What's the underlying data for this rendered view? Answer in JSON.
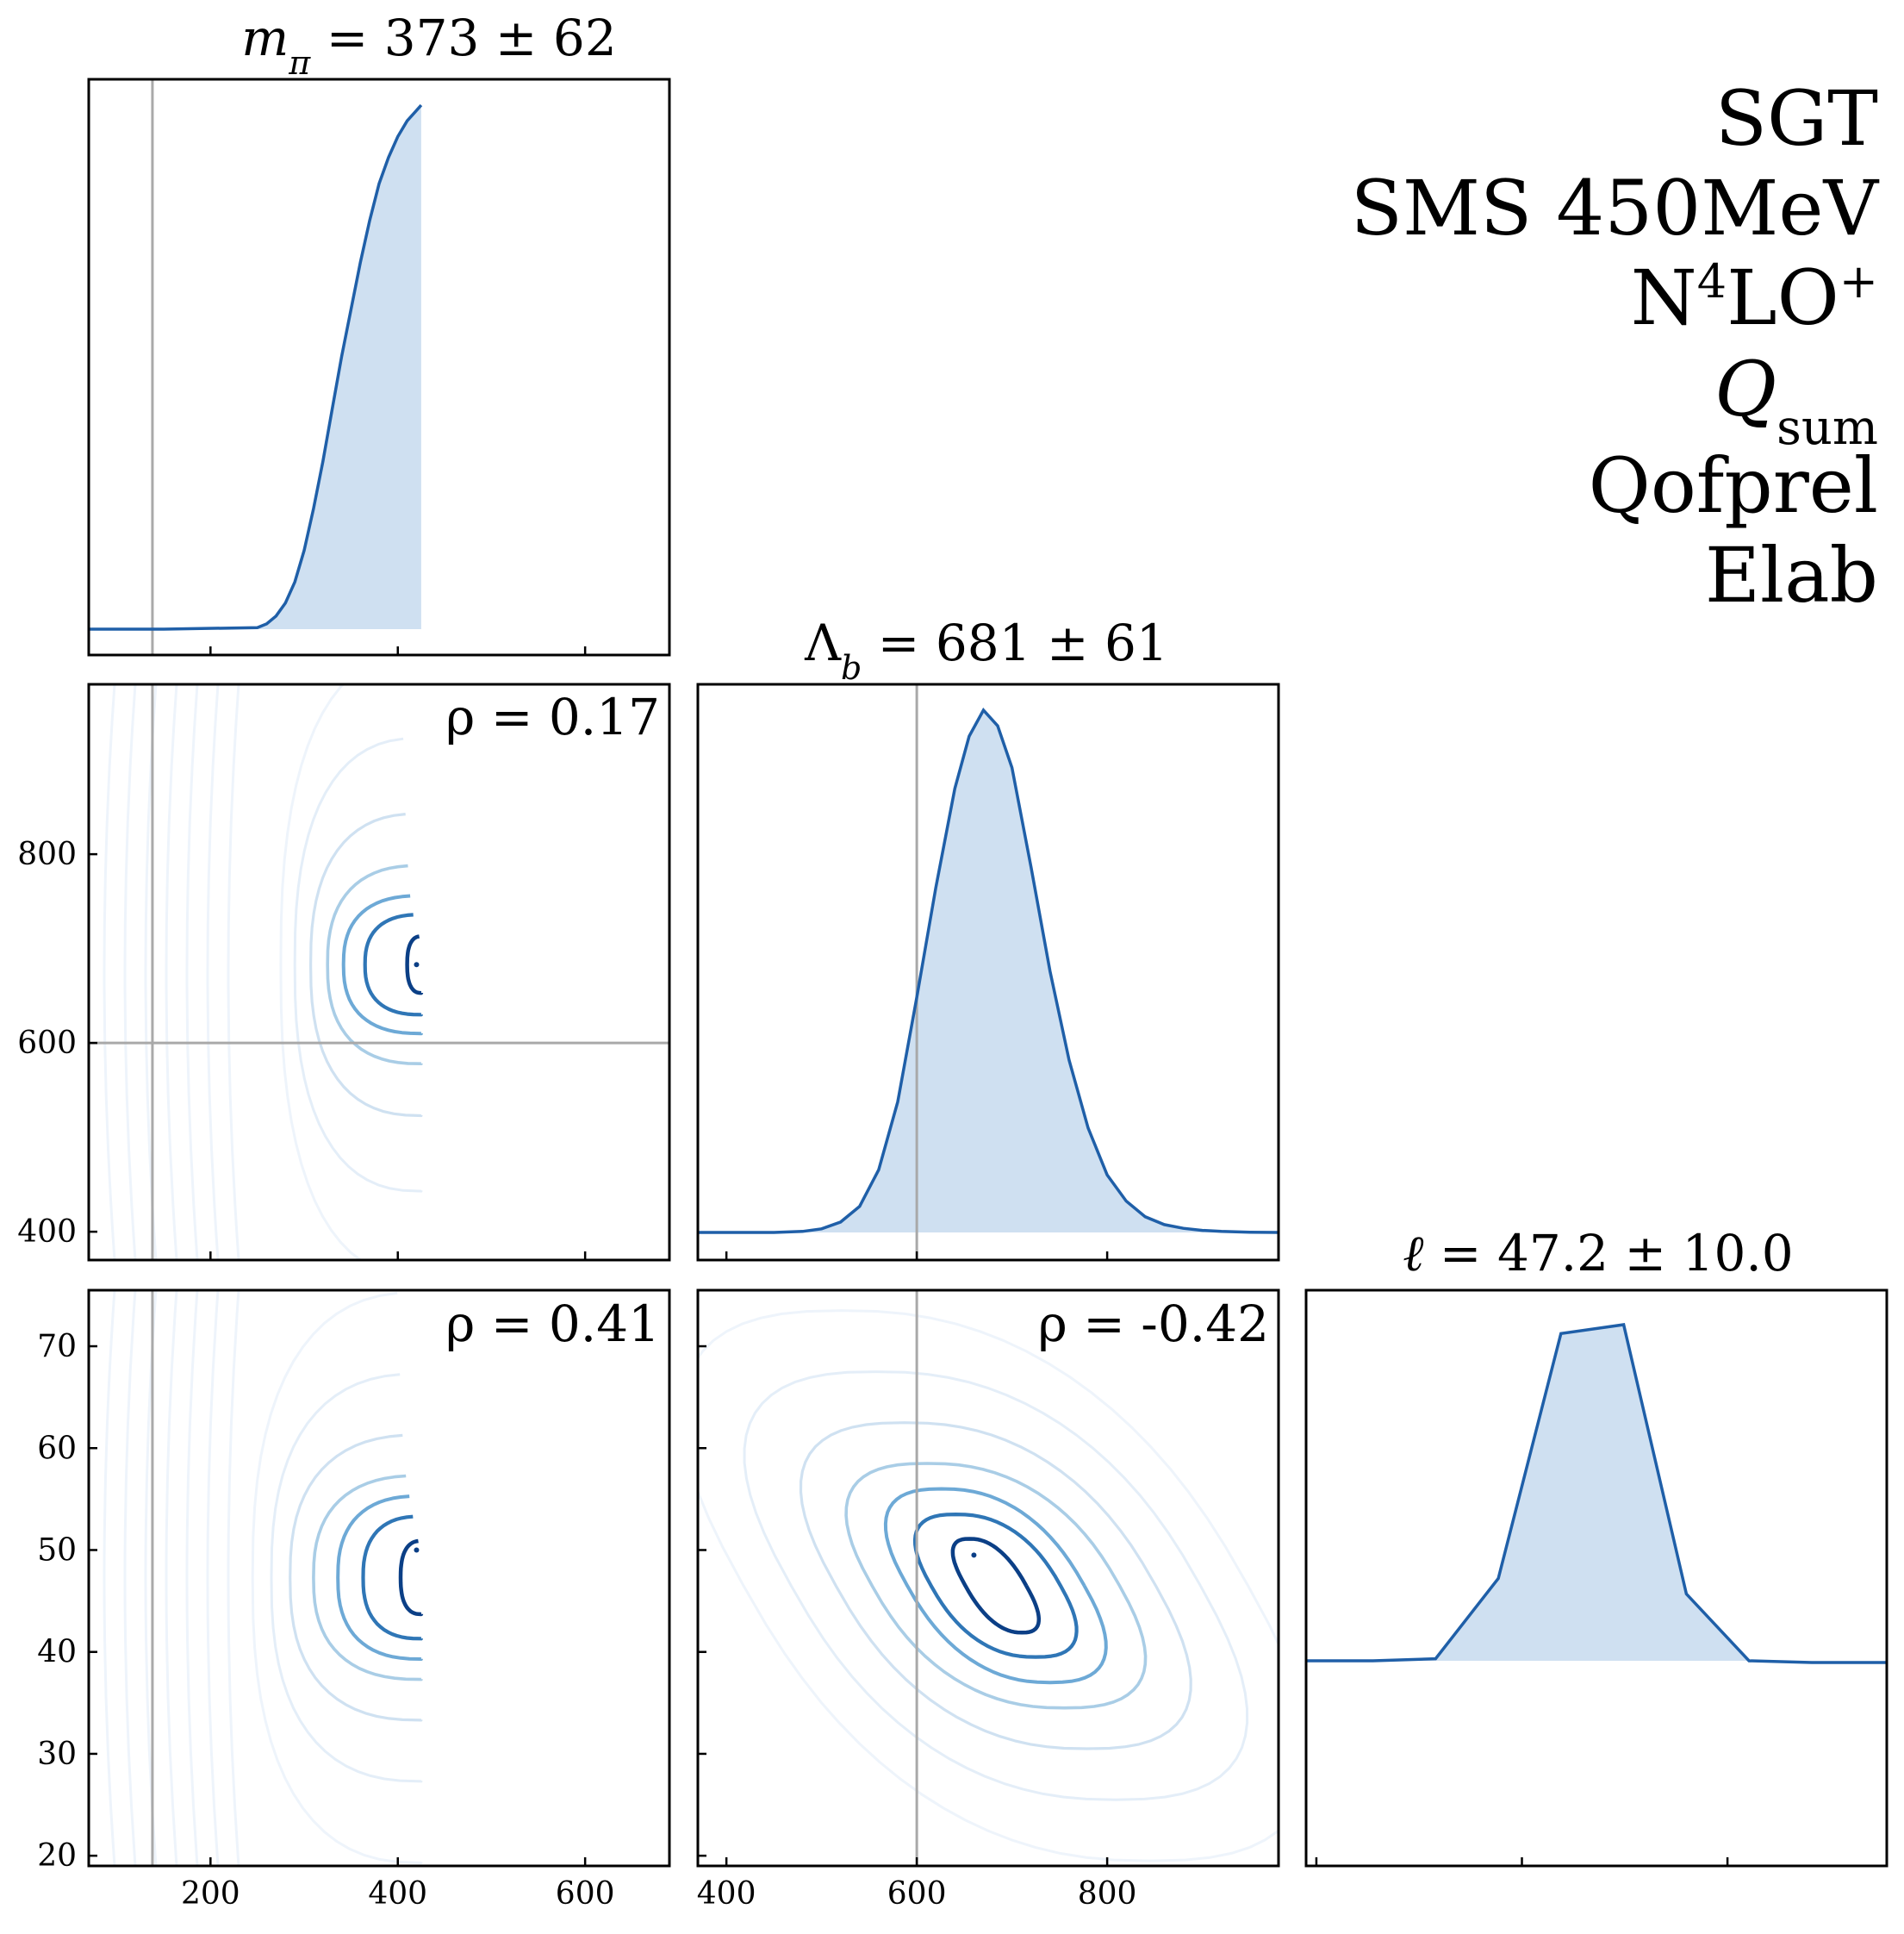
{
  "info_block": {
    "lines": [
      "SGT",
      "SMS 450MeV",
      "N",
      "Q",
      "Qofprel",
      "Elab"
    ],
    "n4lo_sup": "4",
    "n4lo_rest": "LO",
    "n4lo_plus": "+",
    "qsum_sub": "sum"
  },
  "colors": {
    "line": "#1f5fa8",
    "fill": "#cfe0f1",
    "truth": "#a9a9a9",
    "contours": [
      "#0b3f86",
      "#2f76b6",
      "#6da9d6",
      "#a9cde6",
      "#cfe1f1",
      "#e4eef8",
      "#eef4fb"
    ]
  },
  "chart_data": [
    {
      "type": "area",
      "panel": "m_pi marginal",
      "title": "m_π = 373 ± 62",
      "title_var": "m",
      "title_sub": "π",
      "title_rest": " = 373 ± 62",
      "xlim": [
        70,
        690
      ],
      "xticks": [
        200,
        400,
        600
      ],
      "truth_x": 138,
      "x": [
        70,
        150,
        250,
        260,
        270,
        280,
        290,
        300,
        310,
        320,
        330,
        340,
        350,
        360,
        370,
        380,
        390,
        400,
        410,
        420,
        425
      ],
      "y": [
        0,
        0,
        0.003,
        0.01,
        0.025,
        0.05,
        0.09,
        0.15,
        0.23,
        0.32,
        0.42,
        0.52,
        0.61,
        0.7,
        0.78,
        0.85,
        0.9,
        0.94,
        0.97,
        0.99,
        1.0
      ]
    },
    {
      "type": "area",
      "panel": "Lambda_b marginal",
      "title": "Λ_b = 681 ± 61",
      "title_var": "Λ",
      "title_sub": "b",
      "title_rest": " = 681 ± 61",
      "xlim": [
        370,
        980
      ],
      "xticks": [
        400,
        600,
        800
      ],
      "truth_x": 600,
      "x": [
        370,
        450,
        480,
        500,
        520,
        540,
        560,
        580,
        600,
        620,
        640,
        655,
        670,
        685,
        700,
        720,
        740,
        760,
        780,
        800,
        820,
        840,
        860,
        880,
        900,
        920,
        950,
        980
      ],
      "y": [
        0,
        0,
        0.002,
        0.007,
        0.02,
        0.05,
        0.12,
        0.25,
        0.45,
        0.66,
        0.85,
        0.95,
        1.0,
        0.97,
        0.89,
        0.7,
        0.5,
        0.33,
        0.2,
        0.11,
        0.06,
        0.03,
        0.015,
        0.008,
        0.004,
        0.002,
        0.0005,
        0
      ]
    },
    {
      "type": "area",
      "panel": "ell marginal",
      "title": "ℓ = 47.2 ± 10.0",
      "title_var": "ℓ",
      "title_rest": " = 47.2 ± 10.0",
      "xlim": [
        19,
        75.5
      ],
      "xticks": [
        20,
        30,
        40,
        50,
        60,
        70
      ],
      "x": [
        19,
        25.5,
        31.6,
        37.7,
        43.8,
        49.9,
        56,
        62.1,
        68.2,
        74.3,
        75.5
      ],
      "y": [
        0,
        0,
        0.006,
        0.24,
        0.954,
        0.98,
        0.195,
        0.0,
        -0.005,
        -0.005,
        -0.005
      ]
    },
    {
      "type": "contour",
      "panel": "m_pi vs Lambda_b",
      "rho_label": "ρ = 0.17",
      "xlim": [
        70,
        690
      ],
      "ylim": [
        370,
        980
      ],
      "xticks": [
        200,
        400,
        600
      ],
      "yticks": [
        400,
        600,
        800
      ],
      "truth_x": 138,
      "truth_y": 600,
      "cutoff_x": 425,
      "center": [
        425,
        683
      ],
      "half_widths_x": [
        15,
        60,
        83,
        100,
        118,
        135,
        150
      ],
      "half_heights_y": [
        30,
        53,
        73,
        105,
        160,
        240,
        330
      ]
    },
    {
      "type": "contour",
      "panel": "m_pi vs ell",
      "rho_label": "ρ = 0.41",
      "xlim": [
        70,
        690
      ],
      "ylim": [
        19,
        75.5
      ],
      "xticks": [
        200,
        400,
        600
      ],
      "yticks": [
        20,
        30,
        40,
        50,
        60,
        70
      ],
      "truth_x": 138,
      "cutoff_x": 425,
      "center": [
        425,
        47.3
      ],
      "half_widths_x": [
        22,
        62,
        89,
        115,
        140,
        160,
        180
      ],
      "half_heights_y": [
        3.6,
        6,
        8,
        10,
        14,
        20,
        28
      ]
    },
    {
      "type": "contour",
      "panel": "Lambda_b vs ell",
      "rho_label": "ρ = -0.42",
      "xlim": [
        370,
        980
      ],
      "ylim": [
        19,
        75.5
      ],
      "xticks": [
        400,
        600,
        800
      ],
      "yticks": [
        20,
        30,
        40,
        50,
        60,
        70
      ],
      "truth_x": 600,
      "center": [
        683,
        46.5
      ],
      "half_widths_x": [
        32,
        68,
        93,
        130,
        168,
        215,
        265
      ],
      "half_heights_y": [
        4.6,
        7,
        9.5,
        12,
        16,
        21,
        27
      ]
    }
  ]
}
